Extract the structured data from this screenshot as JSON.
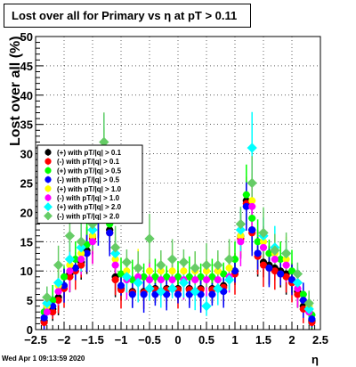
{
  "title": "Lost over all for Primary vs   η at pT > 0.11",
  "footer": "Wed Apr  1 09:13:59 2020",
  "chart_data": {
    "type": "scatter",
    "xlabel": "η",
    "ylabel": "Lost over all (%)",
    "xlim": [
      -2.5,
      2.5
    ],
    "ylim": [
      0,
      50
    ],
    "x_ticks": [
      "−2.5",
      "−2",
      "−1.5",
      "−1",
      "−0.5",
      "0",
      "0.5",
      "1",
      "1.5",
      "2",
      "2.5"
    ],
    "y_ticks": [
      "0",
      "5",
      "10",
      "15",
      "20",
      "25",
      "30",
      "35",
      "40",
      "45",
      "50"
    ],
    "legend_position": "left-middle",
    "series": [
      {
        "name": "(+) with pT/|q| > 0.1",
        "color": "#000000",
        "x": [
          -2.35,
          -2.2,
          -2.1,
          -2.0,
          -1.9,
          -1.8,
          -1.7,
          -1.6,
          -1.5,
          -1.4,
          -1.3,
          -1.2,
          -1.1,
          -1.0,
          -0.8,
          -0.6,
          -0.4,
          -0.2,
          0.0,
          0.2,
          0.4,
          0.6,
          0.8,
          1.0,
          1.1,
          1.2,
          1.3,
          1.4,
          1.5,
          1.6,
          1.7,
          1.8,
          1.9,
          2.0,
          2.1,
          2.2,
          2.35
        ],
        "y": [
          1.5,
          3.5,
          5.5,
          7.5,
          9.5,
          10.5,
          11.5,
          13.5,
          16,
          20,
          28,
          17,
          9,
          7,
          6.5,
          6.5,
          7,
          7,
          7,
          7,
          7,
          7,
          7.5,
          10,
          16,
          22,
          17,
          13,
          11.5,
          11,
          10.5,
          10,
          9.5,
          8.5,
          6.5,
          4,
          1.5
        ]
      },
      {
        "name": "(-) with pT/|q| > 0.1",
        "color": "#ff0000",
        "x": [
          -2.35,
          -2.2,
          -2.1,
          -2.0,
          -1.9,
          -1.8,
          -1.7,
          -1.6,
          -1.5,
          -1.4,
          -1.3,
          -1.2,
          -1.1,
          -1.0,
          -0.8,
          -0.6,
          -0.4,
          -0.2,
          0.0,
          0.2,
          0.4,
          0.6,
          0.8,
          1.0,
          1.1,
          1.2,
          1.3,
          1.4,
          1.5,
          1.6,
          1.7,
          1.8,
          1.9,
          2.0,
          2.1,
          2.2,
          2.35
        ],
        "y": [
          1.2,
          3,
          5,
          7,
          9,
          10,
          11,
          13,
          15.5,
          19.5,
          27,
          16.5,
          8.5,
          6.8,
          6.3,
          6.3,
          6.8,
          6.8,
          6.8,
          6.8,
          6.8,
          6.8,
          7.2,
          9.5,
          15.5,
          21.5,
          16.5,
          12.5,
          11,
          10.5,
          10,
          9.5,
          9,
          8,
          6,
          3.5,
          1.2
        ]
      },
      {
        "name": "(+) with pT/|q| > 0.5",
        "color": "#00ff00",
        "x": [
          -2.35,
          -2.2,
          -2.0,
          -1.8,
          -1.6,
          -1.4,
          -1.3,
          -1.2,
          -1.0,
          -0.8,
          -0.6,
          -0.4,
          -0.2,
          0.0,
          0.2,
          0.4,
          0.6,
          0.8,
          1.0,
          1.2,
          1.3,
          1.4,
          1.6,
          1.8,
          2.0,
          2.2,
          2.35
        ],
        "y": [
          3,
          5,
          9,
          12,
          14.5,
          20,
          29,
          18,
          9.5,
          8.5,
          9,
          9,
          9,
          9,
          9,
          9,
          9,
          9.5,
          12,
          23,
          19,
          15,
          13,
          12,
          10,
          6,
          2.5
        ]
      },
      {
        "name": "(-) with pT/|q| > 0.5",
        "color": "#0000ff",
        "x": [
          -2.35,
          -2.2,
          -2.0,
          -1.8,
          -1.6,
          -1.4,
          -1.3,
          -1.2,
          -1.0,
          -0.8,
          -0.6,
          -0.4,
          -0.2,
          0.0,
          0.2,
          0.4,
          0.6,
          0.8,
          1.0,
          1.2,
          1.3,
          1.4,
          1.6,
          1.8,
          2.0,
          2.2,
          2.35
        ],
        "y": [
          2,
          4,
          7.5,
          10.5,
          13,
          19,
          27.5,
          16.5,
          7.5,
          6,
          6,
          6,
          6,
          6,
          6,
          6,
          6,
          6.5,
          10,
          21,
          17,
          13,
          10.5,
          9.5,
          8.5,
          5,
          1.8
        ]
      },
      {
        "name": "(+) with pT/|q| > 1.0",
        "color": "#ffff00",
        "x": [
          -2.3,
          -2.1,
          -1.9,
          -1.7,
          -1.5,
          -1.3,
          -1.1,
          -0.9,
          -0.7,
          -0.5,
          -0.3,
          -0.1,
          0.1,
          0.3,
          0.5,
          0.7,
          0.9,
          1.1,
          1.3,
          1.5,
          1.7,
          1.9,
          2.1,
          2.3
        ],
        "y": [
          4,
          7.5,
          11,
          13,
          16,
          29,
          12,
          10,
          10.5,
          10,
          10,
          10,
          10,
          10,
          10,
          10,
          10.5,
          16,
          22,
          15,
          13,
          12,
          8,
          4
        ]
      },
      {
        "name": "(-) with pT/|q| > 1.0",
        "color": "#ff00ff",
        "x": [
          -2.3,
          -2.1,
          -1.9,
          -1.7,
          -1.5,
          -1.3,
          -1.1,
          -0.9,
          -0.7,
          -0.5,
          -0.3,
          -0.1,
          0.1,
          0.3,
          0.5,
          0.7,
          0.9,
          1.1,
          1.3,
          1.5,
          1.7,
          1.9,
          2.1,
          2.3
        ],
        "y": [
          3,
          6.5,
          10,
          12,
          15,
          28,
          11,
          8.5,
          9,
          8.5,
          8.5,
          8.5,
          8.5,
          8.5,
          8.5,
          8.5,
          9,
          15,
          21,
          14,
          12,
          11,
          7,
          3
        ]
      },
      {
        "name": "(+) with pT/|q| > 2.0",
        "color": "#00ffff",
        "x": [
          -2.3,
          -2.1,
          -1.9,
          -1.7,
          -1.5,
          -1.3,
          -1.1,
          -0.9,
          -0.7,
          -0.5,
          -0.3,
          -0.1,
          0.1,
          0.3,
          0.5,
          0.7,
          0.9,
          1.1,
          1.3,
          1.5,
          1.7,
          1.9,
          2.1,
          2.3
        ],
        "y": [
          4.5,
          8,
          12,
          14,
          17,
          31,
          13,
          9,
          8,
          7,
          6.5,
          7,
          8,
          6.5,
          4,
          7,
          8.5,
          17,
          31,
          16,
          14,
          13,
          8,
          3.5
        ]
      },
      {
        "name": "(-) with pT/|q| > 2.0",
        "color": "#66cc66",
        "x": [
          -2.3,
          -2.1,
          -1.9,
          -1.7,
          -1.5,
          -1.3,
          -1.1,
          -0.9,
          -0.7,
          -0.5,
          -0.3,
          -0.1,
          0.1,
          0.3,
          0.5,
          0.7,
          0.9,
          1.1,
          1.3,
          1.5,
          1.7,
          1.9,
          2.1,
          2.3
        ],
        "y": [
          5.5,
          11,
          16,
          15,
          18,
          32,
          14,
          11.5,
          10.5,
          15.5,
          11,
          12,
          11.5,
          10.5,
          11,
          11,
          12,
          18,
          25,
          16.5,
          13.5,
          13,
          9.5,
          4.5
        ]
      }
    ]
  }
}
